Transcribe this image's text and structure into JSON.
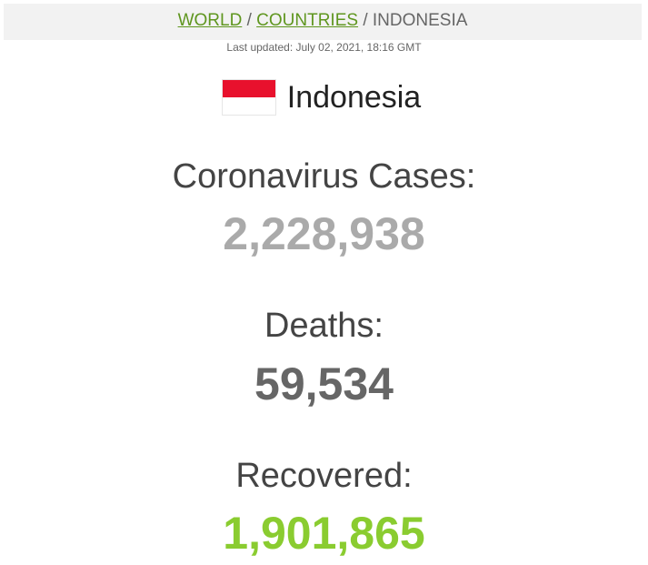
{
  "breadcrumb": {
    "world": "WORLD",
    "separator": "/",
    "countries": "COUNTRIES",
    "current": "INDONESIA"
  },
  "last_updated": "Last updated: July 02, 2021, 18:16 GMT",
  "country": {
    "name": "Indonesia",
    "flag_icon": "indonesia-flag-icon",
    "flag_colors": [
      "#e8112d",
      "#ffffff"
    ]
  },
  "stats": {
    "cases": {
      "label": "Coronavirus Cases:",
      "value": "2,228,938",
      "color": "#aaaaaa"
    },
    "deaths": {
      "label": "Deaths:",
      "value": "59,534",
      "color": "#666666"
    },
    "recovered": {
      "label": "Recovered:",
      "value": "1,901,865",
      "color": "#8acc30"
    }
  },
  "colors": {
    "link": "#5f961f",
    "breadcrumb_bg": "#f2f2f2"
  }
}
